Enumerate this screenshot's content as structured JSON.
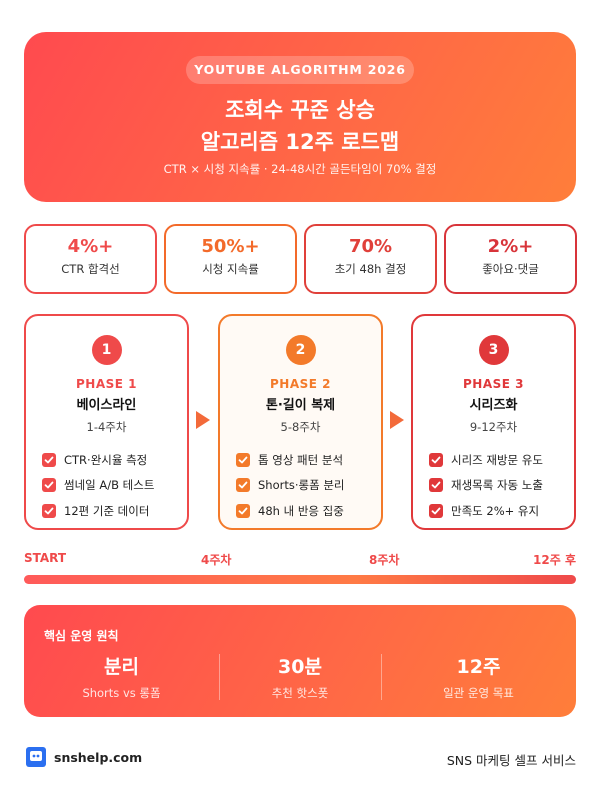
{
  "header": {
    "badge": "YOUTUBE ALGORITHM 2026",
    "title_lines": [
      "조회수 꾸준 상승",
      "알고리즘 12주 로드맵"
    ],
    "subtitle": "CTR × 시청 지속률 · 24-48시간 골든타임이 70% 결정"
  },
  "stats": [
    {
      "value": "4%+",
      "label": "CTR 합격선"
    },
    {
      "value": "50%+",
      "label": "시청 지속률"
    },
    {
      "value": "70%",
      "label": "초기 48h 결정"
    },
    {
      "value": "2%+",
      "label": "좋아요·댓글"
    }
  ],
  "phases": [
    {
      "number": "1",
      "label": "PHASE 1",
      "title": "베이스라인",
      "weeks": "1-4주차",
      "items": [
        "CTR·완시율 측정",
        "썸네일 A/B 테스트",
        "12편 기준 데이터"
      ]
    },
    {
      "number": "2",
      "label": "PHASE 2",
      "title": "톤·길이 복제",
      "weeks": "5-8주차",
      "items": [
        "톱 영상 패턴 분석",
        "Shorts·롱폼 분리",
        "48h 내 반응 집중"
      ]
    },
    {
      "number": "3",
      "label": "PHASE 3",
      "title": "시리즈화",
      "weeks": "9-12주차",
      "items": [
        "시리즈 재방문 유도",
        "재생목록 자동 노출",
        "만족도 2%+ 유지"
      ]
    }
  ],
  "timeline": [
    "START",
    "4주차",
    "8주차",
    "12주 후"
  ],
  "principles": {
    "heading": "핵심 운영 원칙",
    "items": [
      {
        "value": "분리",
        "label": "Shorts vs 롱폼"
      },
      {
        "value": "30분",
        "label": "추천 핫스폿"
      },
      {
        "value": "12주",
        "label": "일관 운영 목표"
      }
    ]
  },
  "footer": {
    "brand": "snshelp.com",
    "tagline": "SNS 마케팅 셀프 서비스"
  }
}
